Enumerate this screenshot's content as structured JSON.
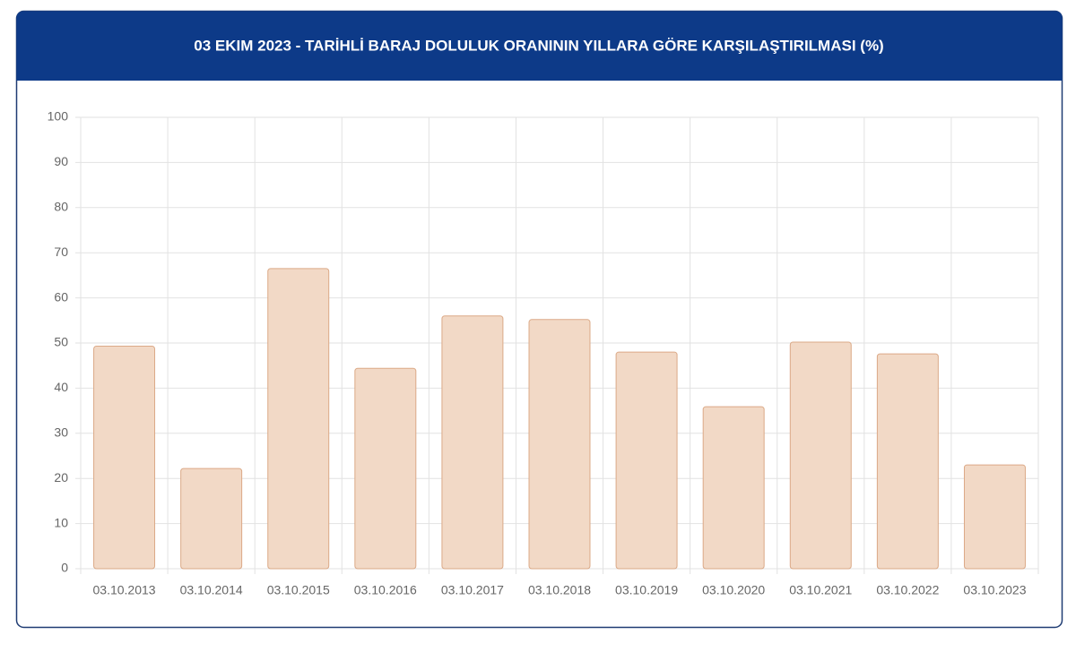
{
  "chart_data": {
    "type": "bar",
    "title": "03 EKIM 2023 - TARİHLİ BARAJ DOLULUK ORANININ YILLARA GÖRE KARŞILAŞTIRILMASI (%)",
    "categories": [
      "03.10.2013",
      "03.10.2014",
      "03.10.2015",
      "03.10.2016",
      "03.10.2017",
      "03.10.2018",
      "03.10.2019",
      "03.10.2020",
      "03.10.2021",
      "03.10.2022",
      "03.10.2023"
    ],
    "values": [
      49.3,
      22.2,
      66.5,
      44.4,
      56.0,
      55.2,
      48.0,
      35.9,
      50.2,
      47.6,
      23.0
    ],
    "color": "#f2d9c6",
    "border_color": "#dba987",
    "ylim": [
      0,
      100
    ],
    "yticks": [
      0,
      10,
      20,
      30,
      40,
      50,
      60,
      70,
      80,
      90,
      100
    ],
    "grid": true
  }
}
